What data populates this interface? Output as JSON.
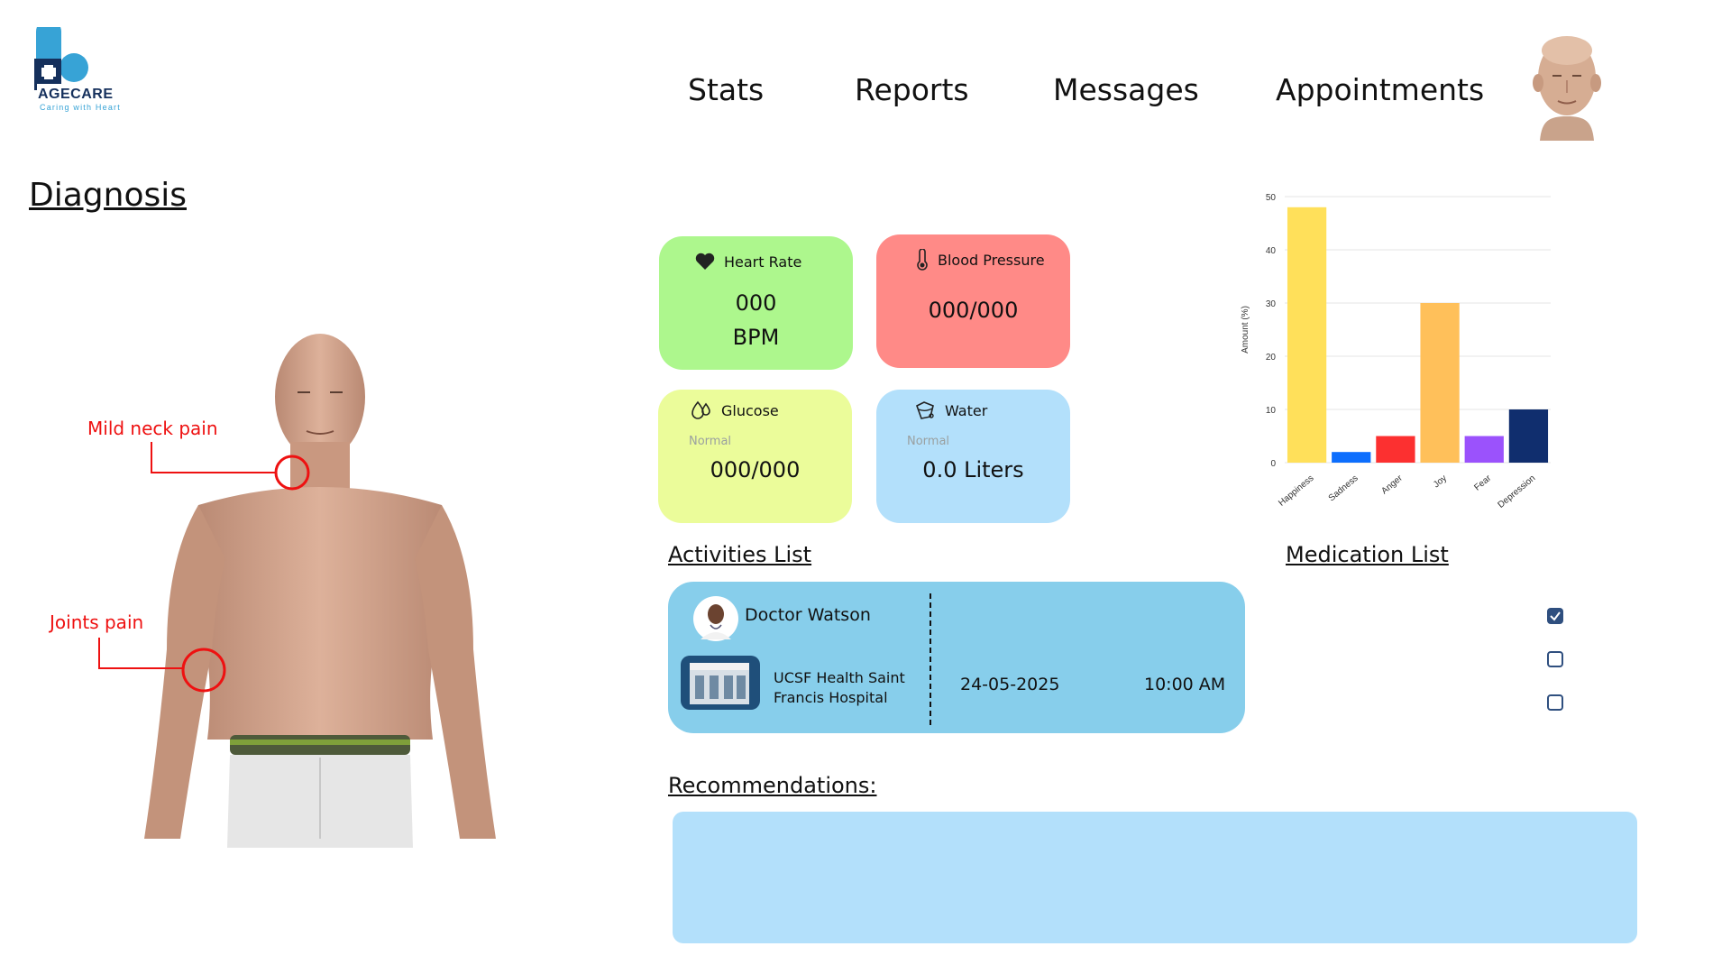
{
  "brand": {
    "name": "AGECARE",
    "tagline": "Caring with Heart"
  },
  "nav": {
    "stats": "Stats",
    "reports": "Reports",
    "messages": "Messages",
    "appointments": "Appointments"
  },
  "diagnosis": {
    "title": "Diagnosis",
    "pain_points": [
      "Mild neck pain",
      "Joints pain"
    ]
  },
  "vitals": {
    "heart_rate": {
      "label": "Heart Rate",
      "value": "000",
      "unit": "BPM",
      "color": "#adf78d"
    },
    "blood_pressure": {
      "label": "Blood Pressure",
      "value": "000/000",
      "color": "#ff8a87"
    },
    "glucose": {
      "label": "Glucose",
      "status": "Normal",
      "value": "000/000",
      "color": "#ebfc9a"
    },
    "water": {
      "label": "Water",
      "status": "Normal",
      "value": "0.0 Liters",
      "color": "#b3e0fb"
    }
  },
  "activities": {
    "title": "Activities List ",
    "items": [
      {
        "doctor": "Doctor Watson",
        "hospital_line1": "UCSF Health Saint",
        "hospital_line2": "Francis Hospital",
        "date": "24-05-2025",
        "time": "10:00 AM"
      }
    ]
  },
  "medication": {
    "title": "Medication List ",
    "checks": [
      true,
      false,
      false
    ]
  },
  "recommendations": {
    "title": "Recommendations:"
  },
  "colors": {
    "accent_blue": "#87ceeb",
    "checkbox": "#2f4f7f",
    "pain_red": "#e11111"
  },
  "chart_data": {
    "type": "bar",
    "categories": [
      "Happiness",
      "Sadness",
      "Anger",
      "Joy",
      "Fear",
      "Depression"
    ],
    "values": [
      48,
      2,
      5,
      30,
      5,
      10
    ],
    "colors": [
      "#ffe05a",
      "#0d6efd",
      "#fc3030",
      "#ffc05a",
      "#9b52fc",
      "#102e6e"
    ],
    "ylabel": "Amount (%)",
    "xlabel": "",
    "title": "",
    "ylim": [
      0,
      50
    ],
    "yticks": [
      0,
      10,
      20,
      30,
      40,
      50
    ],
    "grid": true
  }
}
